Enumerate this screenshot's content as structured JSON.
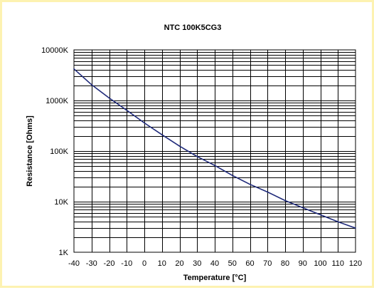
{
  "chart_data": {
    "type": "line",
    "title": "NTC 100K5CG3",
    "xlabel": "Temperature [°C]",
    "ylabel": "Resistance [Ohms]",
    "xlim": [
      -40,
      120
    ],
    "ylim": [
      1,
      10000
    ],
    "yscale": "log",
    "y_unit": "K",
    "grid": true,
    "legend": "none",
    "x_ticks": [
      "-40",
      "-30",
      "-20",
      "-10",
      "0",
      "10",
      "20",
      "30",
      "40",
      "50",
      "60",
      "70",
      "80",
      "90",
      "100",
      "110",
      "120"
    ],
    "y_ticks": [
      "1K",
      "10K",
      "100K",
      "1000K",
      "10000K"
    ],
    "series": [
      {
        "color": "#1f2a7a",
        "x": [
          -40,
          -30,
          -20,
          -10,
          0,
          10,
          20,
          30,
          40,
          50,
          60,
          70,
          80,
          90,
          100,
          110,
          120
        ],
        "y": [
          4200,
          2050,
          1120,
          640,
          360,
          210,
          125,
          78,
          52,
          33,
          22,
          15.5,
          10.5,
          7.6,
          5.5,
          4.0,
          3.0
        ]
      }
    ]
  },
  "colors": {
    "border": "#fdf2b1",
    "plot_border": "#000000",
    "grid": "#000000",
    "line": "#1f2a7a"
  }
}
